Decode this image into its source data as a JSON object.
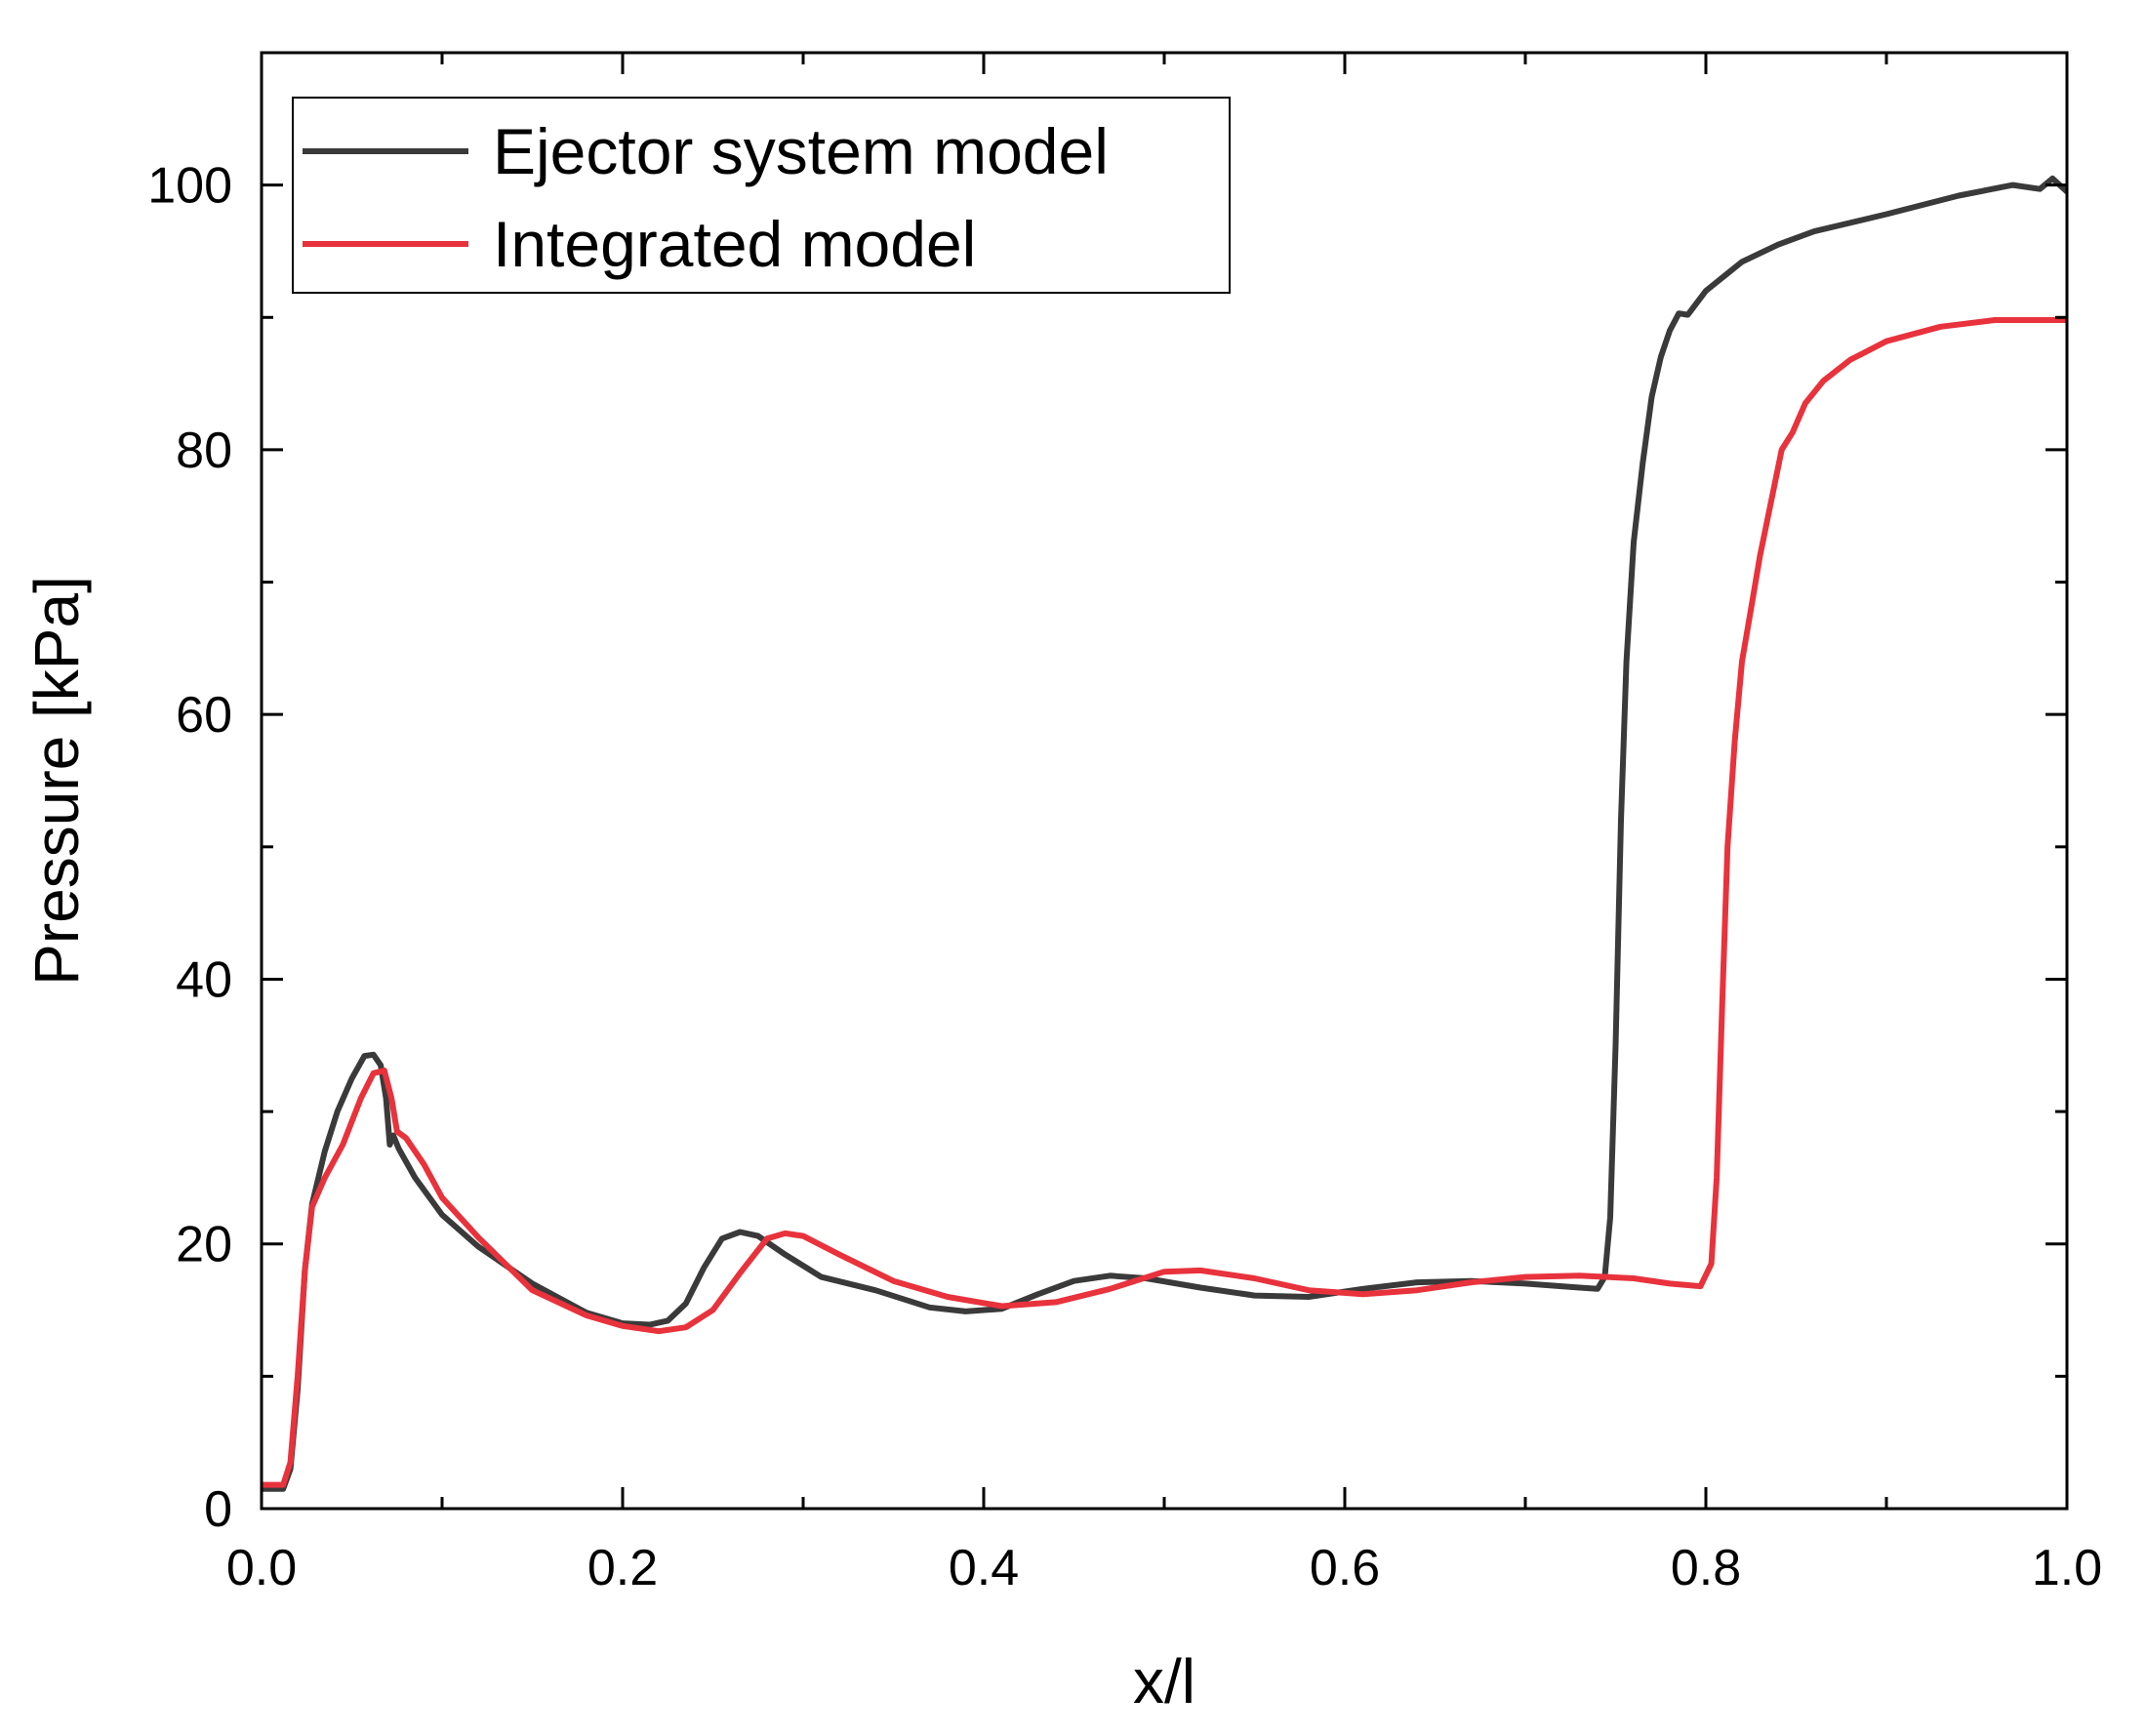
{
  "chart_data": {
    "type": "line",
    "title": "",
    "xlabel": "x/l",
    "ylabel": "Pressure [kPa]",
    "xlim": [
      0.0,
      1.0
    ],
    "ylim": [
      0,
      110
    ],
    "x_ticks": [
      "0.0",
      "0.2",
      "0.4",
      "0.6",
      "0.8",
      "1.0"
    ],
    "y_ticks": [
      "0",
      "20",
      "40",
      "60",
      "80",
      "100"
    ],
    "grid": false,
    "legend_position": "top-left",
    "series": [
      {
        "name": "Ejector system model",
        "color": "#3a3a3a",
        "points": [
          [
            0.0,
            1.5
          ],
          [
            0.012,
            1.5
          ],
          [
            0.016,
            3
          ],
          [
            0.02,
            9
          ],
          [
            0.024,
            18
          ],
          [
            0.028,
            23
          ],
          [
            0.035,
            27
          ],
          [
            0.042,
            30
          ],
          [
            0.05,
            32.5
          ],
          [
            0.057,
            34.2
          ],
          [
            0.062,
            34.3
          ],
          [
            0.066,
            33.5
          ],
          [
            0.069,
            31
          ],
          [
            0.071,
            27.5
          ],
          [
            0.073,
            28.2
          ],
          [
            0.076,
            27.2
          ],
          [
            0.085,
            25
          ],
          [
            0.1,
            22.2
          ],
          [
            0.12,
            19.8
          ],
          [
            0.15,
            17
          ],
          [
            0.18,
            14.8
          ],
          [
            0.2,
            14.0
          ],
          [
            0.215,
            13.9
          ],
          [
            0.225,
            14.2
          ],
          [
            0.235,
            15.5
          ],
          [
            0.245,
            18.2
          ],
          [
            0.255,
            20.4
          ],
          [
            0.265,
            20.9
          ],
          [
            0.275,
            20.6
          ],
          [
            0.29,
            19.2
          ],
          [
            0.31,
            17.5
          ],
          [
            0.34,
            16.5
          ],
          [
            0.37,
            15.2
          ],
          [
            0.39,
            14.9
          ],
          [
            0.41,
            15.1
          ],
          [
            0.43,
            16.2
          ],
          [
            0.45,
            17.2
          ],
          [
            0.47,
            17.6
          ],
          [
            0.49,
            17.4
          ],
          [
            0.52,
            16.7
          ],
          [
            0.55,
            16.1
          ],
          [
            0.58,
            16.0
          ],
          [
            0.61,
            16.6
          ],
          [
            0.64,
            17.1
          ],
          [
            0.67,
            17.2
          ],
          [
            0.7,
            17.0
          ],
          [
            0.73,
            16.7
          ],
          [
            0.74,
            16.6
          ],
          [
            0.744,
            17.5
          ],
          [
            0.747,
            22
          ],
          [
            0.75,
            35
          ],
          [
            0.753,
            52
          ],
          [
            0.756,
            64
          ],
          [
            0.76,
            73
          ],
          [
            0.765,
            79
          ],
          [
            0.77,
            84
          ],
          [
            0.775,
            87
          ],
          [
            0.78,
            89
          ],
          [
            0.785,
            90.3
          ],
          [
            0.79,
            90.2
          ],
          [
            0.8,
            92
          ],
          [
            0.82,
            94.2
          ],
          [
            0.84,
            95.5
          ],
          [
            0.86,
            96.5
          ],
          [
            0.9,
            97.8
          ],
          [
            0.94,
            99.2
          ],
          [
            0.97,
            100.0
          ],
          [
            0.985,
            99.7
          ],
          [
            0.992,
            100.5
          ],
          [
            1.0,
            99.5
          ]
        ]
      },
      {
        "name": "Integrated model",
        "color": "#e8323c",
        "points": [
          [
            0.0,
            1.8
          ],
          [
            0.012,
            1.8
          ],
          [
            0.016,
            3.5
          ],
          [
            0.02,
            10
          ],
          [
            0.024,
            18
          ],
          [
            0.028,
            22.8
          ],
          [
            0.035,
            25
          ],
          [
            0.045,
            27.5
          ],
          [
            0.055,
            31
          ],
          [
            0.062,
            32.9
          ],
          [
            0.068,
            33.1
          ],
          [
            0.072,
            31
          ],
          [
            0.075,
            28.5
          ],
          [
            0.08,
            28
          ],
          [
            0.09,
            26
          ],
          [
            0.1,
            23.5
          ],
          [
            0.12,
            20.5
          ],
          [
            0.15,
            16.5
          ],
          [
            0.18,
            14.6
          ],
          [
            0.2,
            13.8
          ],
          [
            0.22,
            13.4
          ],
          [
            0.235,
            13.7
          ],
          [
            0.25,
            15
          ],
          [
            0.265,
            17.8
          ],
          [
            0.28,
            20.4
          ],
          [
            0.29,
            20.8
          ],
          [
            0.3,
            20.6
          ],
          [
            0.32,
            19.2
          ],
          [
            0.35,
            17.2
          ],
          [
            0.38,
            16
          ],
          [
            0.41,
            15.3
          ],
          [
            0.44,
            15.6
          ],
          [
            0.47,
            16.6
          ],
          [
            0.5,
            17.9
          ],
          [
            0.52,
            18.0
          ],
          [
            0.55,
            17.4
          ],
          [
            0.58,
            16.5
          ],
          [
            0.61,
            16.2
          ],
          [
            0.64,
            16.5
          ],
          [
            0.67,
            17.1
          ],
          [
            0.7,
            17.5
          ],
          [
            0.73,
            17.6
          ],
          [
            0.76,
            17.4
          ],
          [
            0.78,
            17.0
          ],
          [
            0.797,
            16.8
          ],
          [
            0.803,
            18.5
          ],
          [
            0.806,
            25
          ],
          [
            0.809,
            38
          ],
          [
            0.812,
            50
          ],
          [
            0.816,
            58
          ],
          [
            0.82,
            64
          ],
          [
            0.825,
            68
          ],
          [
            0.83,
            72
          ],
          [
            0.836,
            76
          ],
          [
            0.842,
            80
          ],
          [
            0.848,
            81.3
          ],
          [
            0.855,
            83.5
          ],
          [
            0.865,
            85.2
          ],
          [
            0.88,
            86.8
          ],
          [
            0.9,
            88.2
          ],
          [
            0.93,
            89.3
          ],
          [
            0.96,
            89.8
          ],
          [
            1.0,
            89.8
          ]
        ]
      }
    ]
  }
}
